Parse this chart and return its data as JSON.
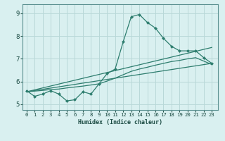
{
  "title": "",
  "xlabel": "Humidex (Indice chaleur)",
  "bg_color": "#d9f0f0",
  "grid_color": "#b8d8d8",
  "line_color": "#2d7d6e",
  "xlim": [
    -0.5,
    23.8
  ],
  "ylim": [
    4.75,
    9.4
  ],
  "yticks": [
    5,
    6,
    7,
    8,
    9
  ],
  "xticks": [
    0,
    1,
    2,
    3,
    4,
    5,
    6,
    7,
    8,
    9,
    10,
    11,
    12,
    13,
    14,
    15,
    16,
    17,
    18,
    19,
    20,
    21,
    22,
    23
  ],
  "line1_x": [
    0,
    1,
    2,
    3,
    4,
    5,
    6,
    7,
    8,
    9,
    10,
    11,
    12,
    13,
    14,
    15,
    16,
    17,
    18,
    19,
    20,
    21,
    22,
    23
  ],
  "line1_y": [
    5.6,
    5.35,
    5.45,
    5.6,
    5.45,
    5.15,
    5.2,
    5.55,
    5.45,
    5.9,
    6.35,
    6.55,
    7.75,
    8.85,
    8.95,
    8.6,
    8.35,
    7.9,
    7.55,
    7.35,
    7.35,
    7.35,
    7.05,
    6.8
  ],
  "line2_x": [
    0,
    23
  ],
  "line2_y": [
    5.55,
    7.5
  ],
  "line3_x": [
    0,
    23
  ],
  "line3_y": [
    5.55,
    6.8
  ],
  "line4_x": [
    0,
    1,
    2,
    3,
    4,
    5,
    6,
    7,
    8,
    9,
    10,
    11,
    12,
    13,
    14,
    15,
    16,
    17,
    18,
    19,
    20,
    21,
    22,
    23
  ],
  "line4_y": [
    5.55,
    5.58,
    5.61,
    5.65,
    5.67,
    5.72,
    5.76,
    5.8,
    5.85,
    5.9,
    6.02,
    6.15,
    6.3,
    6.45,
    6.55,
    6.63,
    6.72,
    6.8,
    6.88,
    6.93,
    7.0,
    7.05,
    6.9,
    6.75
  ]
}
